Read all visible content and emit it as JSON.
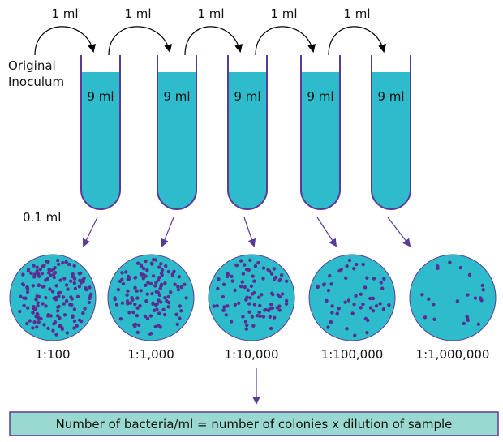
{
  "colors": {
    "medium": "#2ebccc",
    "outline": "#5a3a96",
    "colony": "#5b2d8e",
    "result_box": "#9ad8d2"
  },
  "source_label": [
    "Original",
    "Inoculum"
  ],
  "transfer_volume": "1 ml",
  "plating_volume": "0.1 ml",
  "tubes": [
    {
      "volume": "9 ml",
      "transfer": "1 ml"
    },
    {
      "volume": "9 ml",
      "transfer": "1 ml"
    },
    {
      "volume": "9 ml",
      "transfer": "1 ml"
    },
    {
      "volume": "9 ml",
      "transfer": "1 ml"
    },
    {
      "volume": "9 ml",
      "transfer": "1 ml"
    }
  ],
  "plates": [
    {
      "dilution": "1:100"
    },
    {
      "dilution": "1:1,000"
    },
    {
      "dilution": "1:10,000"
    },
    {
      "dilution": "1:100,000"
    },
    {
      "dilution": "1:1,000,000"
    }
  ],
  "formula": "Number of bacteria/ml = number of colonies x dilution of sample"
}
